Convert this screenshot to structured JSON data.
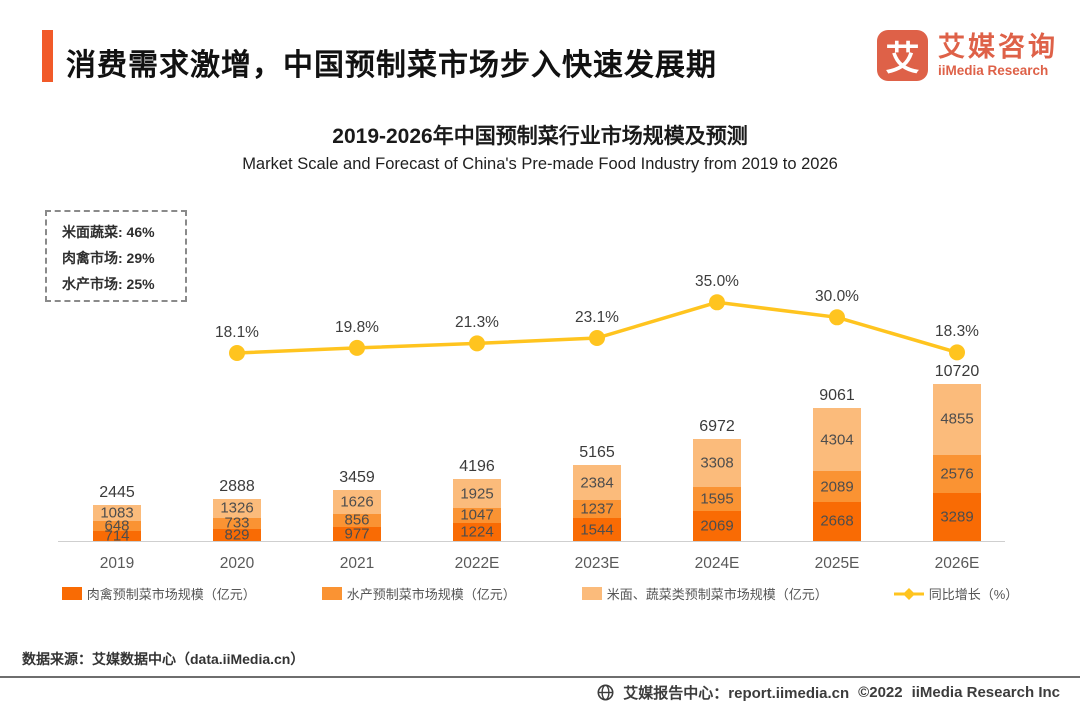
{
  "header": {
    "title": "消费需求激增，中国预制菜市场步入快速发展期",
    "logo": {
      "glyph": "艾",
      "name_cn": "艾媒咨询",
      "name_en": "iiMedia Research"
    }
  },
  "note_box": {
    "lines": [
      "米面蔬菜: 46%",
      "肉禽市场: 29%",
      "水产市场: 25%"
    ]
  },
  "chart_data": {
    "type": "bar",
    "subtype": "stacked-bars-with-growth-line",
    "title": "2019-2026年中国预制菜行业市场规模及预测",
    "subtitle": "Market Scale and Forecast of China's Pre-made Food Industry from 2019 to 2026",
    "categories": [
      "2019",
      "2020",
      "2021",
      "2022E",
      "2023E",
      "2024E",
      "2025E",
      "2026E"
    ],
    "series": [
      {
        "name": "肉禽预制菜市场规模（亿元）",
        "color": "#F96B04",
        "values": [
          714,
          829,
          977,
          1224,
          1544,
          2069,
          2668,
          3289
        ]
      },
      {
        "name": "水产预制菜市场规模（亿元）",
        "color": "#FA9333",
        "values": [
          648,
          733,
          856,
          1047,
          1237,
          1595,
          2089,
          2576
        ]
      },
      {
        "name": "米面、蔬菜类预制菜市场规模（亿元）",
        "color": "#FBBB7B",
        "values": [
          1083,
          1326,
          1626,
          1925,
          2384,
          3308,
          4304,
          4855
        ]
      }
    ],
    "totals": [
      2445,
      2888,
      3459,
      4196,
      5165,
      6972,
      9061,
      10720
    ],
    "line": {
      "name": "同比增长（%）",
      "color": "#FFC41F",
      "values": [
        null,
        18.1,
        19.8,
        21.3,
        23.1,
        35.0,
        30.0,
        18.3
      ]
    },
    "legend_position": "bottom",
    "gridlines": false,
    "stack_order_bottom_to_top": [
      "肉禽",
      "水产",
      "米面蔬菜"
    ]
  },
  "source": "数据来源：艾媒数据中心（data.iiMedia.cn）",
  "footer": {
    "report_center": "艾媒报告中心：report.iimedia.cn",
    "copyright": "©2022",
    "company": "iiMedia Research Inc"
  }
}
